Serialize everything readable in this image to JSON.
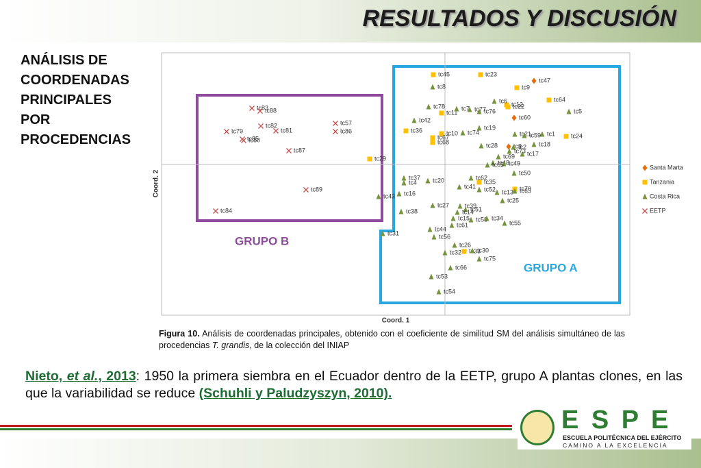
{
  "header": {
    "title": "RESULTADOS Y DISCUSIÓN"
  },
  "sidebar": {
    "lines": [
      "ANÁLISIS DE",
      "COORDENADAS",
      "PRINCIPALES",
      "POR",
      "PROCEDENCIAS"
    ]
  },
  "chart_data": {
    "type": "scatter",
    "xlabel": "Coord. 1",
    "ylabel": "Coord. 2",
    "xlim": [
      -4.14,
      2.7
    ],
    "ylim": [
      -2.2,
      1.63
    ],
    "legend": "right",
    "annotations": [
      "GRUPO B",
      "GRUPO A"
    ],
    "series": [
      {
        "name": "Santa Marta",
        "color": "#e46c0a",
        "marker": "diamond",
        "labels": [
          "tc47",
          "tc60",
          "tc3"
        ],
        "x": [
          1.3,
          1.01,
          0.93
        ],
        "values": [
          1.22,
          0.68,
          0.26
        ]
      },
      {
        "name": "Tanzania",
        "color": "#ffc000",
        "marker": "square",
        "labels": [
          "tc45",
          "tc23",
          "tc9",
          "tc64",
          "tc12",
          "tc22",
          "tc11",
          "tc36",
          "tc10",
          "tc67",
          "tc68",
          "tc24",
          "tc29",
          "tc35",
          "tc70",
          "tc33"
        ],
        "x": [
          -0.17,
          0.52,
          1.05,
          1.52,
          0.9,
          0.92,
          -0.05,
          -0.57,
          -0.05,
          -0.18,
          -0.18,
          1.77,
          -1.1,
          0.5,
          1.02,
          0.28
        ],
        "values": [
          1.31,
          1.31,
          1.12,
          0.94,
          0.87,
          0.84,
          0.75,
          0.49,
          0.45,
          0.39,
          0.32,
          0.41,
          0.08,
          -0.26,
          -0.36,
          -1.27
        ]
      },
      {
        "name": "Costa Rica",
        "color": "#77933c",
        "marker": "triangle",
        "labels": [
          "tc8",
          "tc78",
          "tc7",
          "tc77",
          "tc76",
          "tc6",
          "tc5",
          "tc42",
          "tc19",
          "tc74",
          "tc21",
          "tc1",
          "tc59",
          "tc18",
          "tc28",
          "tc2",
          "tc73",
          "tc17",
          "tc69",
          "tc48",
          "tc49",
          "tc65",
          "tc50",
          "tc37",
          "tc4",
          "tc20",
          "tc62",
          "tc41",
          "tc52",
          "tc13",
          "tc63",
          "tc16",
          "tc25",
          "tc43",
          "tc27",
          "tc39",
          "tc51",
          "tc14",
          "tc38",
          "tc15",
          "tc58",
          "tc34",
          "tc61",
          "tc55",
          "tc44",
          "tc31",
          "tc56",
          "tc26",
          "tc32",
          "tc30",
          "tc75",
          "tc66",
          "tc53",
          "tc54"
        ],
        "x": [
          -0.18,
          -0.24,
          0.17,
          0.36,
          0.5,
          0.72,
          1.81,
          -0.45,
          0.5,
          0.26,
          1.02,
          1.42,
          1.16,
          1.3,
          0.53,
          1.0,
          0.94,
          1.13,
          0.78,
          0.7,
          0.86,
          0.62,
          1.01,
          -0.6,
          -0.6,
          -0.25,
          0.38,
          0.21,
          0.5,
          0.76,
          1.02,
          -0.67,
          0.84,
          -0.97,
          -0.18,
          0.22,
          0.3,
          0.18,
          -0.64,
          0.12,
          0.38,
          0.61,
          0.1,
          0.87,
          -0.22,
          -0.91,
          -0.16,
          0.14,
          0.0,
          0.4,
          0.5,
          0.08,
          -0.2,
          -0.09
        ],
        "values": [
          1.13,
          0.84,
          0.81,
          0.8,
          0.77,
          0.92,
          0.77,
          0.64,
          0.53,
          0.46,
          0.44,
          0.44,
          0.42,
          0.29,
          0.27,
          0.25,
          0.19,
          0.15,
          0.11,
          0.02,
          0.01,
          -0.01,
          -0.13,
          -0.2,
          -0.27,
          -0.24,
          -0.2,
          -0.33,
          -0.37,
          -0.41,
          -0.39,
          -0.43,
          -0.53,
          -0.47,
          -0.6,
          -0.61,
          -0.66,
          -0.7,
          -0.69,
          -0.79,
          -0.81,
          -0.79,
          -0.89,
          -0.86,
          -0.95,
          -1.01,
          -1.06,
          -1.18,
          -1.29,
          -1.26,
          -1.38,
          -1.51,
          -1.64,
          -1.86
        ]
      },
      {
        "name": "EETP",
        "color": "#c0504d",
        "marker": "x",
        "labels": [
          "tc83",
          "tc88",
          "tc82",
          "tc79",
          "tc81",
          "tc85",
          "tc80",
          "tc87",
          "tc89",
          "tc84",
          "tc57",
          "tc86"
        ],
        "x": [
          -2.82,
          -2.7,
          -2.69,
          -3.19,
          -2.47,
          -2.96,
          -2.94,
          -2.28,
          -2.03,
          -3.35,
          -1.6,
          -1.6
        ],
        "values": [
          0.82,
          0.78,
          0.56,
          0.48,
          0.49,
          0.37,
          0.35,
          0.2,
          -0.37,
          -0.68,
          0.6,
          0.48
        ]
      }
    ]
  },
  "caption": {
    "label": "Figura 10.",
    "text1": " Análisis de coordenadas principales, obtenido con el coeficiente de similitud SM del análisis simultáneo de las procedencias ",
    "species": "T. grandis",
    "text2": ", de la colección del INIAP"
  },
  "body": {
    "cite": [
      "Nieto, ",
      "et al.",
      ", 2013"
    ],
    "text": ": 1950 la primera siembra en el Ecuador dentro de la EETP, grupo A plantas clones, en las que la variabilidad se reduce ",
    "ref": "(Schuhli y Paludzyszyn, 2010)."
  },
  "footer": {
    "logo": "E S P E",
    "school": "ESCUELA POLITÉCNICA DEL EJÉRCITO",
    "motto": "CAMINO A LA EXCELENCIA"
  }
}
